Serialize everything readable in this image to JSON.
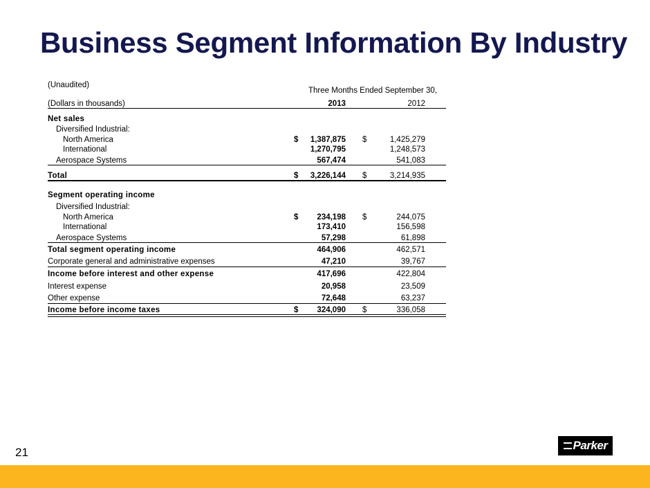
{
  "title": "Business Segment Information By Industry",
  "table": {
    "unaudited": "(Unaudited)",
    "period": "Three Months Ended September 30,",
    "units": "(Dollars in thousands)",
    "year1": "2013",
    "year2": "2012",
    "net_sales_heading": "Net sales",
    "net_sales_group": "Diversified Industrial:",
    "net_sales": [
      {
        "label": "North America",
        "dollar1": "$",
        "v1": "1,387,875",
        "dollar2": "$",
        "v2": "1,425,279"
      },
      {
        "label": "International",
        "dollar1": "",
        "v1": "1,270,795",
        "dollar2": "",
        "v2": "1,248,573"
      },
      {
        "label": "Aerospace Systems",
        "dollar1": "",
        "v1": "567,474",
        "dollar2": "",
        "v2": "541,083"
      }
    ],
    "total": {
      "label": "Total",
      "dollar1": "$",
      "v1": "3,226,144",
      "dollar2": "$",
      "v2": "3,214,935"
    },
    "seg_heading": "Segment operating income",
    "seg_group": "Diversified Industrial:",
    "segment_income": [
      {
        "label": "North America",
        "dollar1": "$",
        "v1": "234,198",
        "dollar2": "$",
        "v2": "244,075"
      },
      {
        "label": "International",
        "dollar1": "",
        "v1": "173,410",
        "dollar2": "",
        "v2": "156,598"
      },
      {
        "label": "Aerospace Systems",
        "dollar1": "",
        "v1": "57,298",
        "dollar2": "",
        "v2": "61,898"
      }
    ],
    "total_segment": {
      "label": "Total segment operating income",
      "v1": "464,906",
      "v2": "462,571"
    },
    "corporate": {
      "label": "Corporate general and administrative expenses",
      "v1": "47,210",
      "v2": "39,767"
    },
    "income_before_interest": {
      "label": "Income before interest and other expense",
      "v1": "417,696",
      "v2": "422,804"
    },
    "interest": {
      "label": "Interest expense",
      "v1": "20,958",
      "v2": "23,509"
    },
    "other": {
      "label": "Other expense",
      "v1": "72,648",
      "v2": "63,237"
    },
    "income_before_taxes": {
      "label": "Income before income taxes",
      "dollar1": "$",
      "v1": "324,090",
      "dollar2": "$",
      "v2": "336,058"
    }
  },
  "page_number": "21",
  "logo_text": "Parker",
  "colors": {
    "title": "#14184f",
    "footer_bar": "#fcb41f"
  }
}
